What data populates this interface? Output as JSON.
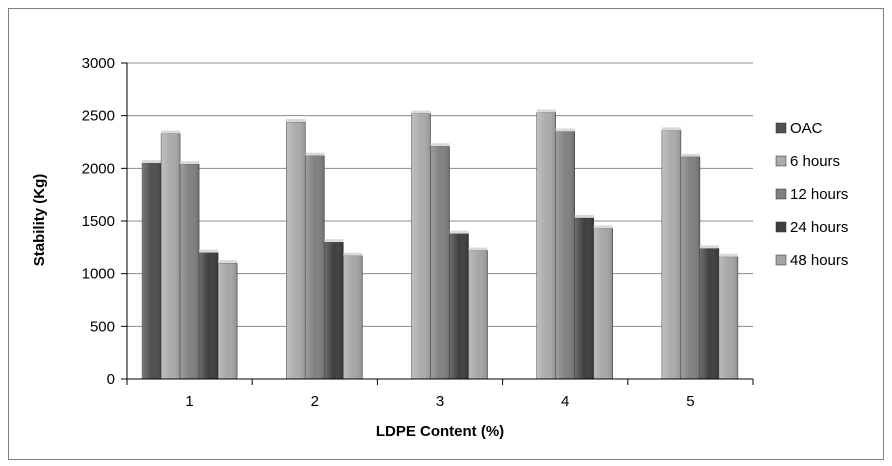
{
  "chart_data": {
    "type": "bar",
    "xlabel": "LDPE Content (%)",
    "ylabel": "Stability (Kg)",
    "categories": [
      "1",
      "2",
      "3",
      "4",
      "5"
    ],
    "ylim": [
      0,
      3000
    ],
    "yticks": [
      "0",
      "500",
      "1000",
      "1500",
      "2000",
      "2500",
      "3000"
    ],
    "grid": true,
    "legend_position": "right",
    "series": [
      {
        "name": "OAC",
        "values": [
          2050,
          null,
          null,
          null,
          null
        ],
        "color": "#4f4f4f"
      },
      {
        "name": "6 hours",
        "values": [
          2330,
          2440,
          2520,
          2530,
          2360
        ],
        "color": "#ababab"
      },
      {
        "name": "12 hours",
        "values": [
          2040,
          2120,
          2210,
          2350,
          2110
        ],
        "color": "#808080"
      },
      {
        "name": "24 hours",
        "values": [
          1200,
          1300,
          1380,
          1530,
          1240
        ],
        "color": "#3f3f3f"
      },
      {
        "name": "48 hours",
        "values": [
          1100,
          1170,
          1220,
          1430,
          1160
        ],
        "color": "#a6a6a6"
      }
    ]
  }
}
